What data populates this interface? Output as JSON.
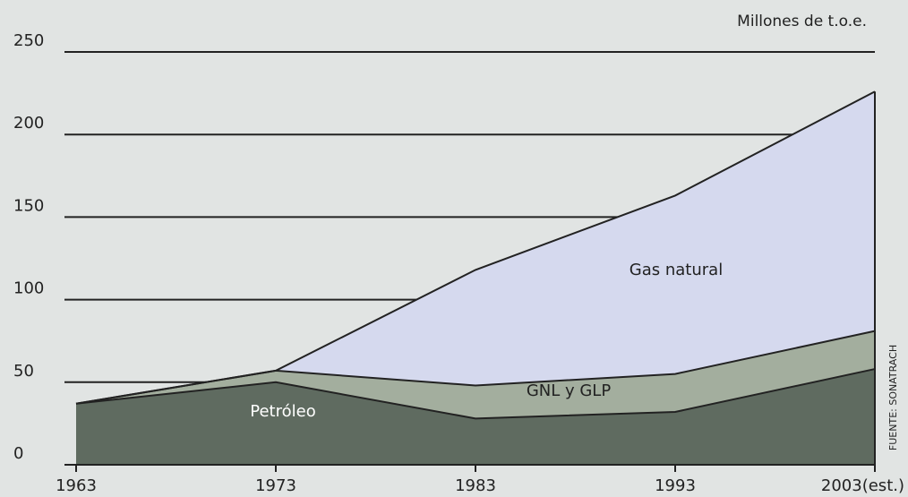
{
  "chart_data": {
    "type": "stacked-area",
    "unit_label": "Millones de t.o.e.",
    "source": "FUENTE: SONATRACH",
    "categories": [
      "1963",
      "1973",
      "1983",
      "1993",
      "2003(est.)"
    ],
    "series": [
      {
        "name": "Petróleo",
        "color": "#5f6b60",
        "label_color": "#ffffff",
        "values": [
          37,
          50,
          28,
          32,
          58
        ]
      },
      {
        "name": "GNL y GLP",
        "color": "#a3ae9e",
        "label_color": "#222222",
        "values": [
          0,
          7,
          20,
          23,
          23
        ]
      },
      {
        "name": "Gas natural",
        "color": "#d5d9ee",
        "label_color": "#222222",
        "values": [
          0,
          0,
          70,
          108,
          145
        ]
      }
    ],
    "ylim": [
      0,
      250
    ],
    "yticks": [
      0,
      50,
      100,
      150,
      200,
      250
    ],
    "grid": true
  }
}
